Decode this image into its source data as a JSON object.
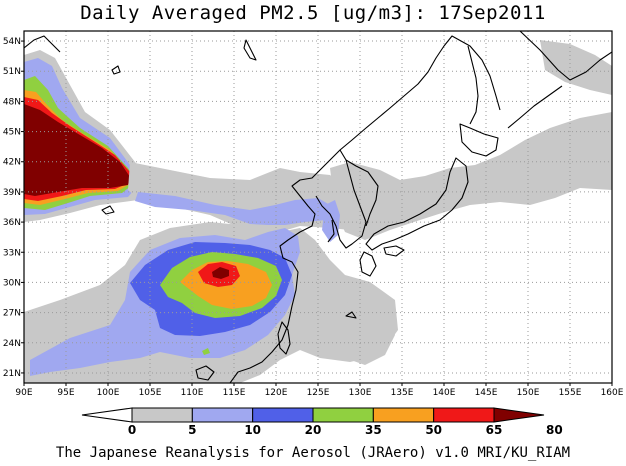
{
  "title": "Daily Averaged PM2.5 [ug/m3]: 17Sep2011",
  "footer": "The Japanese Reanalysis for Aerosol (JRAero) v1.0 MRI/KU_RIAM",
  "map": {
    "lon_range": [
      90,
      160
    ],
    "lat_range": [
      20,
      55
    ],
    "lon_ticks": [
      {
        "value": 90,
        "label": "90E"
      },
      {
        "value": 95,
        "label": "95E"
      },
      {
        "value": 100,
        "label": "100E"
      },
      {
        "value": 105,
        "label": "105E"
      },
      {
        "value": 110,
        "label": "110E"
      },
      {
        "value": 115,
        "label": "115E"
      },
      {
        "value": 120,
        "label": "120E"
      },
      {
        "value": 125,
        "label": "125E"
      },
      {
        "value": 130,
        "label": "130E"
      },
      {
        "value": 135,
        "label": "135E"
      },
      {
        "value": 140,
        "label": "140E"
      },
      {
        "value": 145,
        "label": "145E"
      },
      {
        "value": 150,
        "label": "150E"
      },
      {
        "value": 155,
        "label": "155E"
      },
      {
        "value": 160,
        "label": "160E"
      }
    ],
    "lat_ticks": [
      {
        "value": 21,
        "label": "21N"
      },
      {
        "value": 24,
        "label": "24N"
      },
      {
        "value": 27,
        "label": "27N"
      },
      {
        "value": 30,
        "label": "30N"
      },
      {
        "value": 33,
        "label": "33N"
      },
      {
        "value": 36,
        "label": "36N"
      },
      {
        "value": 39,
        "label": "39N"
      },
      {
        "value": 42,
        "label": "42N"
      },
      {
        "value": 45,
        "label": "45N"
      },
      {
        "value": 48,
        "label": "48N"
      },
      {
        "value": 51,
        "label": "51N"
      },
      {
        "value": 54,
        "label": "54N"
      }
    ],
    "grid": "dotted"
  },
  "colorbar": {
    "levels": [
      "0",
      "5",
      "10",
      "20",
      "35",
      "50",
      "65",
      "80"
    ],
    "colors": [
      "#ffffff",
      "#c8c8c8",
      "#a0a8f0",
      "#5060e8",
      "#90d040",
      "#f8a020",
      "#f01818",
      "#800000"
    ]
  }
}
